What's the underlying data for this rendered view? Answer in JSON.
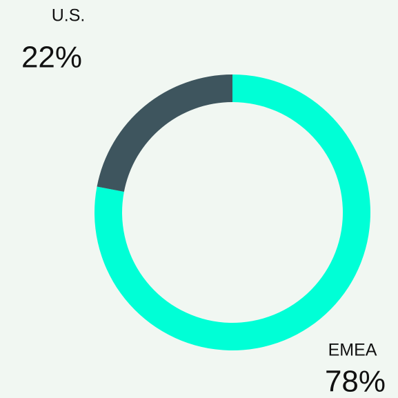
{
  "chart_data": {
    "type": "donut",
    "categories": [
      "EMEA",
      "U.S."
    ],
    "values": [
      78,
      22
    ],
    "value_labels": [
      "78%",
      "22%"
    ],
    "colors": [
      "#00ffd6",
      "#3e555e"
    ]
  }
}
